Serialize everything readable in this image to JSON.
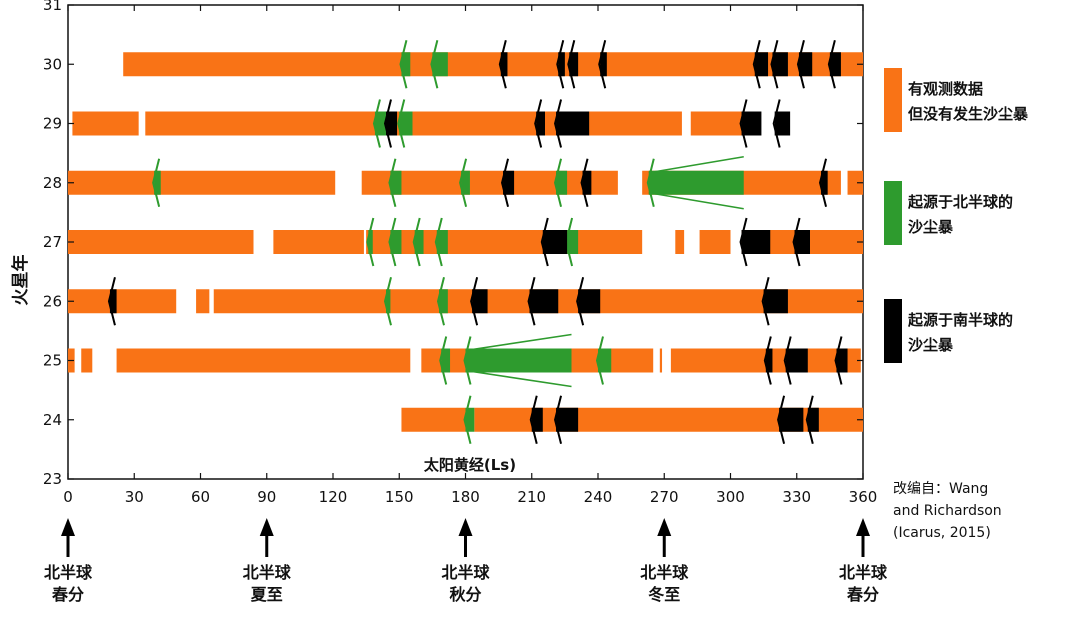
{
  "chart_data": {
    "type": "timeline",
    "ylabel": "火星年",
    "xlabel": "太阳黄经(Ls)",
    "xlim": [
      0,
      360
    ],
    "ylim": [
      23,
      31
    ],
    "x_ticks": [
      "0",
      "30",
      "60",
      "90",
      "120",
      "150",
      "180",
      "210",
      "240",
      "270",
      "300",
      "330",
      "360"
    ],
    "y_ticks": [
      "23",
      "24",
      "25",
      "26",
      "27",
      "28",
      "29",
      "30",
      "31"
    ],
    "legend": [
      {
        "label_lines": [
          "有观测数据",
          "但没有发生沙尘暴"
        ],
        "color": "#F97316"
      },
      {
        "label_lines": [
          "起源于北半球的",
          "沙尘暴"
        ],
        "color": "#2E9B2E"
      },
      {
        "label_lines": [
          "起源于南半球的",
          "沙尘暴"
        ],
        "color": "#000000"
      }
    ],
    "source_lines": [
      "改编自：Wang",
      "and Richardson",
      "(Icarus, 2015)"
    ],
    "season_markers": [
      {
        "ls": 0,
        "lines": [
          "北半球",
          "春分"
        ]
      },
      {
        "ls": 90,
        "lines": [
          "北半球",
          "夏至"
        ]
      },
      {
        "ls": 180,
        "lines": [
          "北半球",
          "秋分"
        ]
      },
      {
        "ls": 270,
        "lines": [
          "北半球",
          "冬至"
        ]
      },
      {
        "ls": 360,
        "lines": [
          "北半球",
          "春分"
        ]
      }
    ],
    "years": [
      {
        "my": 30,
        "observed": [
          [
            25,
            360
          ]
        ],
        "north": [
          [
            151,
            155
          ],
          [
            165,
            172
          ]
        ],
        "south": [
          [
            196,
            199
          ],
          [
            222,
            225
          ],
          [
            227,
            231
          ],
          [
            241,
            244
          ],
          [
            311,
            317
          ],
          [
            319,
            326
          ],
          [
            331,
            337
          ],
          [
            345,
            350
          ]
        ]
      },
      {
        "my": 29,
        "observed": [
          [
            2,
            32
          ],
          [
            35,
            278
          ],
          [
            282,
            305
          ],
          [
            309,
            313
          ],
          [
            321,
            325
          ]
        ],
        "north": [
          [
            139,
            144
          ],
          [
            150,
            156
          ]
        ],
        "south": [
          [
            144,
            149
          ],
          [
            212,
            216
          ],
          [
            221,
            236
          ],
          [
            305,
            314
          ],
          [
            320,
            327
          ]
        ]
      },
      {
        "my": 28,
        "observed": [
          [
            0,
            121
          ],
          [
            133,
            249
          ],
          [
            260,
            350
          ],
          [
            353,
            360
          ]
        ],
        "north": [
          [
            39,
            42
          ],
          [
            146,
            151
          ],
          [
            178,
            182
          ],
          [
            221,
            226
          ],
          [
            263,
            306
          ]
        ],
        "south": [
          [
            197,
            202
          ],
          [
            233,
            237
          ],
          [
            341,
            344
          ]
        ]
      },
      {
        "my": 27,
        "observed": [
          [
            0,
            84
          ],
          [
            93,
            134
          ],
          [
            135,
            260
          ],
          [
            275,
            279
          ],
          [
            286,
            300
          ],
          [
            305,
            360
          ]
        ],
        "north": [
          [
            136,
            138
          ],
          [
            146,
            151
          ],
          [
            157,
            161
          ],
          [
            167,
            172
          ],
          [
            226,
            231
          ]
        ],
        "south": [
          [
            215,
            226
          ],
          [
            305,
            318
          ],
          [
            329,
            336
          ]
        ]
      },
      {
        "my": 26,
        "observed": [
          [
            0,
            49
          ],
          [
            58,
            64
          ],
          [
            66,
            360
          ]
        ],
        "north": [
          [
            144,
            146
          ],
          [
            168,
            172
          ]
        ],
        "south": [
          [
            19,
            22
          ],
          [
            183,
            190
          ],
          [
            209,
            222
          ],
          [
            231,
            241
          ],
          [
            315,
            326
          ]
        ]
      },
      {
        "my": 25,
        "observed": [
          [
            0,
            3
          ],
          [
            6,
            11
          ],
          [
            22,
            155
          ],
          [
            160,
            265
          ],
          [
            268,
            269
          ],
          [
            273,
            359
          ]
        ],
        "north": [
          [
            169,
            173
          ],
          [
            180,
            228
          ],
          [
            240,
            246
          ]
        ],
        "south": [
          [
            316,
            319
          ],
          [
            325,
            335
          ],
          [
            348,
            353
          ]
        ]
      },
      {
        "my": 24,
        "observed": [
          [
            151,
            180
          ],
          [
            184,
            360
          ]
        ],
        "north": [
          [
            180,
            184
          ]
        ],
        "south": [
          [
            210,
            215
          ],
          [
            221,
            231
          ],
          [
            322,
            333
          ],
          [
            335,
            340
          ]
        ]
      }
    ],
    "widening_storms": [
      {
        "my": 28,
        "ls_start": 263,
        "ls_end": 306,
        "color": "#2E9B2E"
      },
      {
        "my": 25,
        "ls_start": 180,
        "ls_end": 228,
        "color": "#2E9B2E"
      }
    ]
  }
}
